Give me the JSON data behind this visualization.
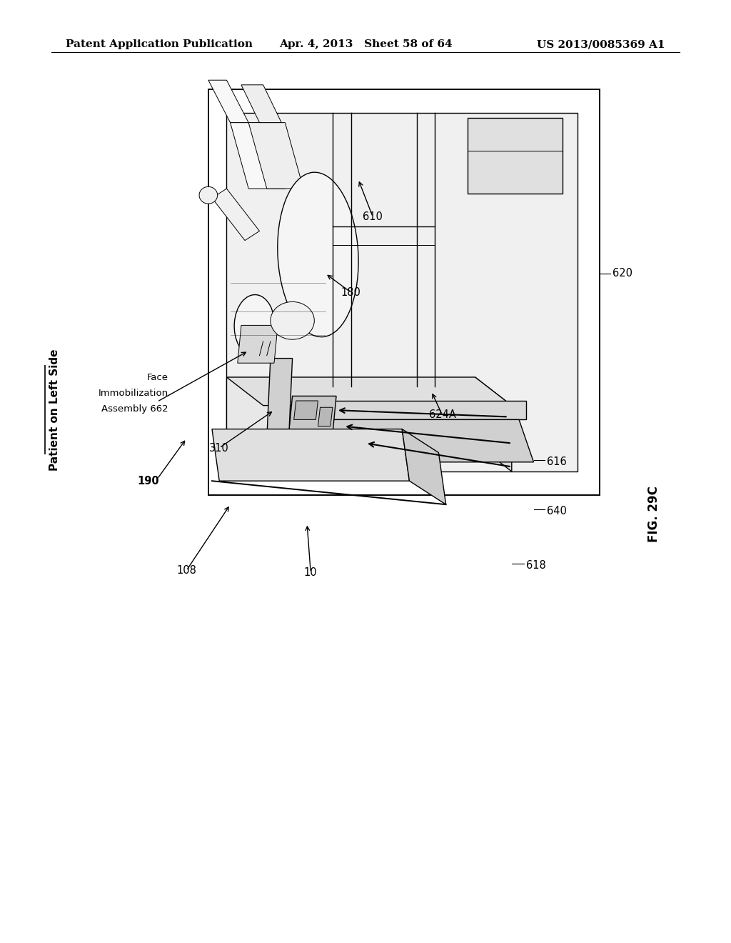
{
  "background_color": "#ffffff",
  "header_left": "Patent Application Publication",
  "header_center": "Apr. 4, 2013   Sheet 58 of 64",
  "header_right": "US 2013/0085369 A1",
  "header_fontsize": 11,
  "left_label": "Patient on Left Side",
  "fig_label": "FIG. 29C"
}
